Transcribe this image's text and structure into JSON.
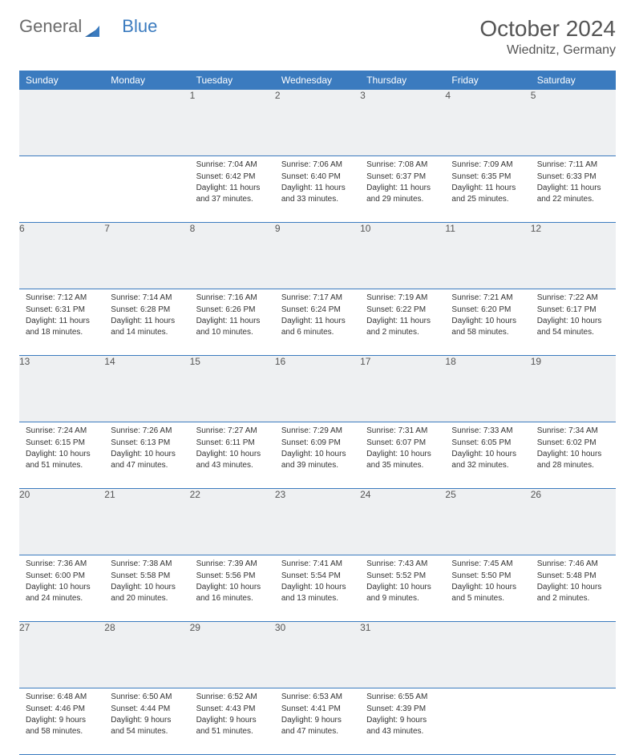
{
  "logo": {
    "part1": "General",
    "part2": "Blue"
  },
  "title": "October 2024",
  "location": "Wiednitz, Germany",
  "colors": {
    "header_bg": "#3b7bbf",
    "header_text": "#ffffff",
    "daynum_bg": "#eef0f2",
    "row_border": "#3b7bbf",
    "body_bg": "#ffffff",
    "text": "#333333",
    "title_text": "#555555"
  },
  "typography": {
    "title_fontsize": 28,
    "location_fontsize": 16,
    "dayheader_fontsize": 12,
    "daynum_fontsize": 12,
    "cell_fontsize": 10
  },
  "day_headers": [
    "Sunday",
    "Monday",
    "Tuesday",
    "Wednesday",
    "Thursday",
    "Friday",
    "Saturday"
  ],
  "weeks": [
    [
      null,
      null,
      {
        "n": "1",
        "sunrise": "Sunrise: 7:04 AM",
        "sunset": "Sunset: 6:42 PM",
        "daylight": "Daylight: 11 hours and 37 minutes."
      },
      {
        "n": "2",
        "sunrise": "Sunrise: 7:06 AM",
        "sunset": "Sunset: 6:40 PM",
        "daylight": "Daylight: 11 hours and 33 minutes."
      },
      {
        "n": "3",
        "sunrise": "Sunrise: 7:08 AM",
        "sunset": "Sunset: 6:37 PM",
        "daylight": "Daylight: 11 hours and 29 minutes."
      },
      {
        "n": "4",
        "sunrise": "Sunrise: 7:09 AM",
        "sunset": "Sunset: 6:35 PM",
        "daylight": "Daylight: 11 hours and 25 minutes."
      },
      {
        "n": "5",
        "sunrise": "Sunrise: 7:11 AM",
        "sunset": "Sunset: 6:33 PM",
        "daylight": "Daylight: 11 hours and 22 minutes."
      }
    ],
    [
      {
        "n": "6",
        "sunrise": "Sunrise: 7:12 AM",
        "sunset": "Sunset: 6:31 PM",
        "daylight": "Daylight: 11 hours and 18 minutes."
      },
      {
        "n": "7",
        "sunrise": "Sunrise: 7:14 AM",
        "sunset": "Sunset: 6:28 PM",
        "daylight": "Daylight: 11 hours and 14 minutes."
      },
      {
        "n": "8",
        "sunrise": "Sunrise: 7:16 AM",
        "sunset": "Sunset: 6:26 PM",
        "daylight": "Daylight: 11 hours and 10 minutes."
      },
      {
        "n": "9",
        "sunrise": "Sunrise: 7:17 AM",
        "sunset": "Sunset: 6:24 PM",
        "daylight": "Daylight: 11 hours and 6 minutes."
      },
      {
        "n": "10",
        "sunrise": "Sunrise: 7:19 AM",
        "sunset": "Sunset: 6:22 PM",
        "daylight": "Daylight: 11 hours and 2 minutes."
      },
      {
        "n": "11",
        "sunrise": "Sunrise: 7:21 AM",
        "sunset": "Sunset: 6:20 PM",
        "daylight": "Daylight: 10 hours and 58 minutes."
      },
      {
        "n": "12",
        "sunrise": "Sunrise: 7:22 AM",
        "sunset": "Sunset: 6:17 PM",
        "daylight": "Daylight: 10 hours and 54 minutes."
      }
    ],
    [
      {
        "n": "13",
        "sunrise": "Sunrise: 7:24 AM",
        "sunset": "Sunset: 6:15 PM",
        "daylight": "Daylight: 10 hours and 51 minutes."
      },
      {
        "n": "14",
        "sunrise": "Sunrise: 7:26 AM",
        "sunset": "Sunset: 6:13 PM",
        "daylight": "Daylight: 10 hours and 47 minutes."
      },
      {
        "n": "15",
        "sunrise": "Sunrise: 7:27 AM",
        "sunset": "Sunset: 6:11 PM",
        "daylight": "Daylight: 10 hours and 43 minutes."
      },
      {
        "n": "16",
        "sunrise": "Sunrise: 7:29 AM",
        "sunset": "Sunset: 6:09 PM",
        "daylight": "Daylight: 10 hours and 39 minutes."
      },
      {
        "n": "17",
        "sunrise": "Sunrise: 7:31 AM",
        "sunset": "Sunset: 6:07 PM",
        "daylight": "Daylight: 10 hours and 35 minutes."
      },
      {
        "n": "18",
        "sunrise": "Sunrise: 7:33 AM",
        "sunset": "Sunset: 6:05 PM",
        "daylight": "Daylight: 10 hours and 32 minutes."
      },
      {
        "n": "19",
        "sunrise": "Sunrise: 7:34 AM",
        "sunset": "Sunset: 6:02 PM",
        "daylight": "Daylight: 10 hours and 28 minutes."
      }
    ],
    [
      {
        "n": "20",
        "sunrise": "Sunrise: 7:36 AM",
        "sunset": "Sunset: 6:00 PM",
        "daylight": "Daylight: 10 hours and 24 minutes."
      },
      {
        "n": "21",
        "sunrise": "Sunrise: 7:38 AM",
        "sunset": "Sunset: 5:58 PM",
        "daylight": "Daylight: 10 hours and 20 minutes."
      },
      {
        "n": "22",
        "sunrise": "Sunrise: 7:39 AM",
        "sunset": "Sunset: 5:56 PM",
        "daylight": "Daylight: 10 hours and 16 minutes."
      },
      {
        "n": "23",
        "sunrise": "Sunrise: 7:41 AM",
        "sunset": "Sunset: 5:54 PM",
        "daylight": "Daylight: 10 hours and 13 minutes."
      },
      {
        "n": "24",
        "sunrise": "Sunrise: 7:43 AM",
        "sunset": "Sunset: 5:52 PM",
        "daylight": "Daylight: 10 hours and 9 minutes."
      },
      {
        "n": "25",
        "sunrise": "Sunrise: 7:45 AM",
        "sunset": "Sunset: 5:50 PM",
        "daylight": "Daylight: 10 hours and 5 minutes."
      },
      {
        "n": "26",
        "sunrise": "Sunrise: 7:46 AM",
        "sunset": "Sunset: 5:48 PM",
        "daylight": "Daylight: 10 hours and 2 minutes."
      }
    ],
    [
      {
        "n": "27",
        "sunrise": "Sunrise: 6:48 AM",
        "sunset": "Sunset: 4:46 PM",
        "daylight": "Daylight: 9 hours and 58 minutes."
      },
      {
        "n": "28",
        "sunrise": "Sunrise: 6:50 AM",
        "sunset": "Sunset: 4:44 PM",
        "daylight": "Daylight: 9 hours and 54 minutes."
      },
      {
        "n": "29",
        "sunrise": "Sunrise: 6:52 AM",
        "sunset": "Sunset: 4:43 PM",
        "daylight": "Daylight: 9 hours and 51 minutes."
      },
      {
        "n": "30",
        "sunrise": "Sunrise: 6:53 AM",
        "sunset": "Sunset: 4:41 PM",
        "daylight": "Daylight: 9 hours and 47 minutes."
      },
      {
        "n": "31",
        "sunrise": "Sunrise: 6:55 AM",
        "sunset": "Sunset: 4:39 PM",
        "daylight": "Daylight: 9 hours and 43 minutes."
      },
      null,
      null
    ]
  ]
}
